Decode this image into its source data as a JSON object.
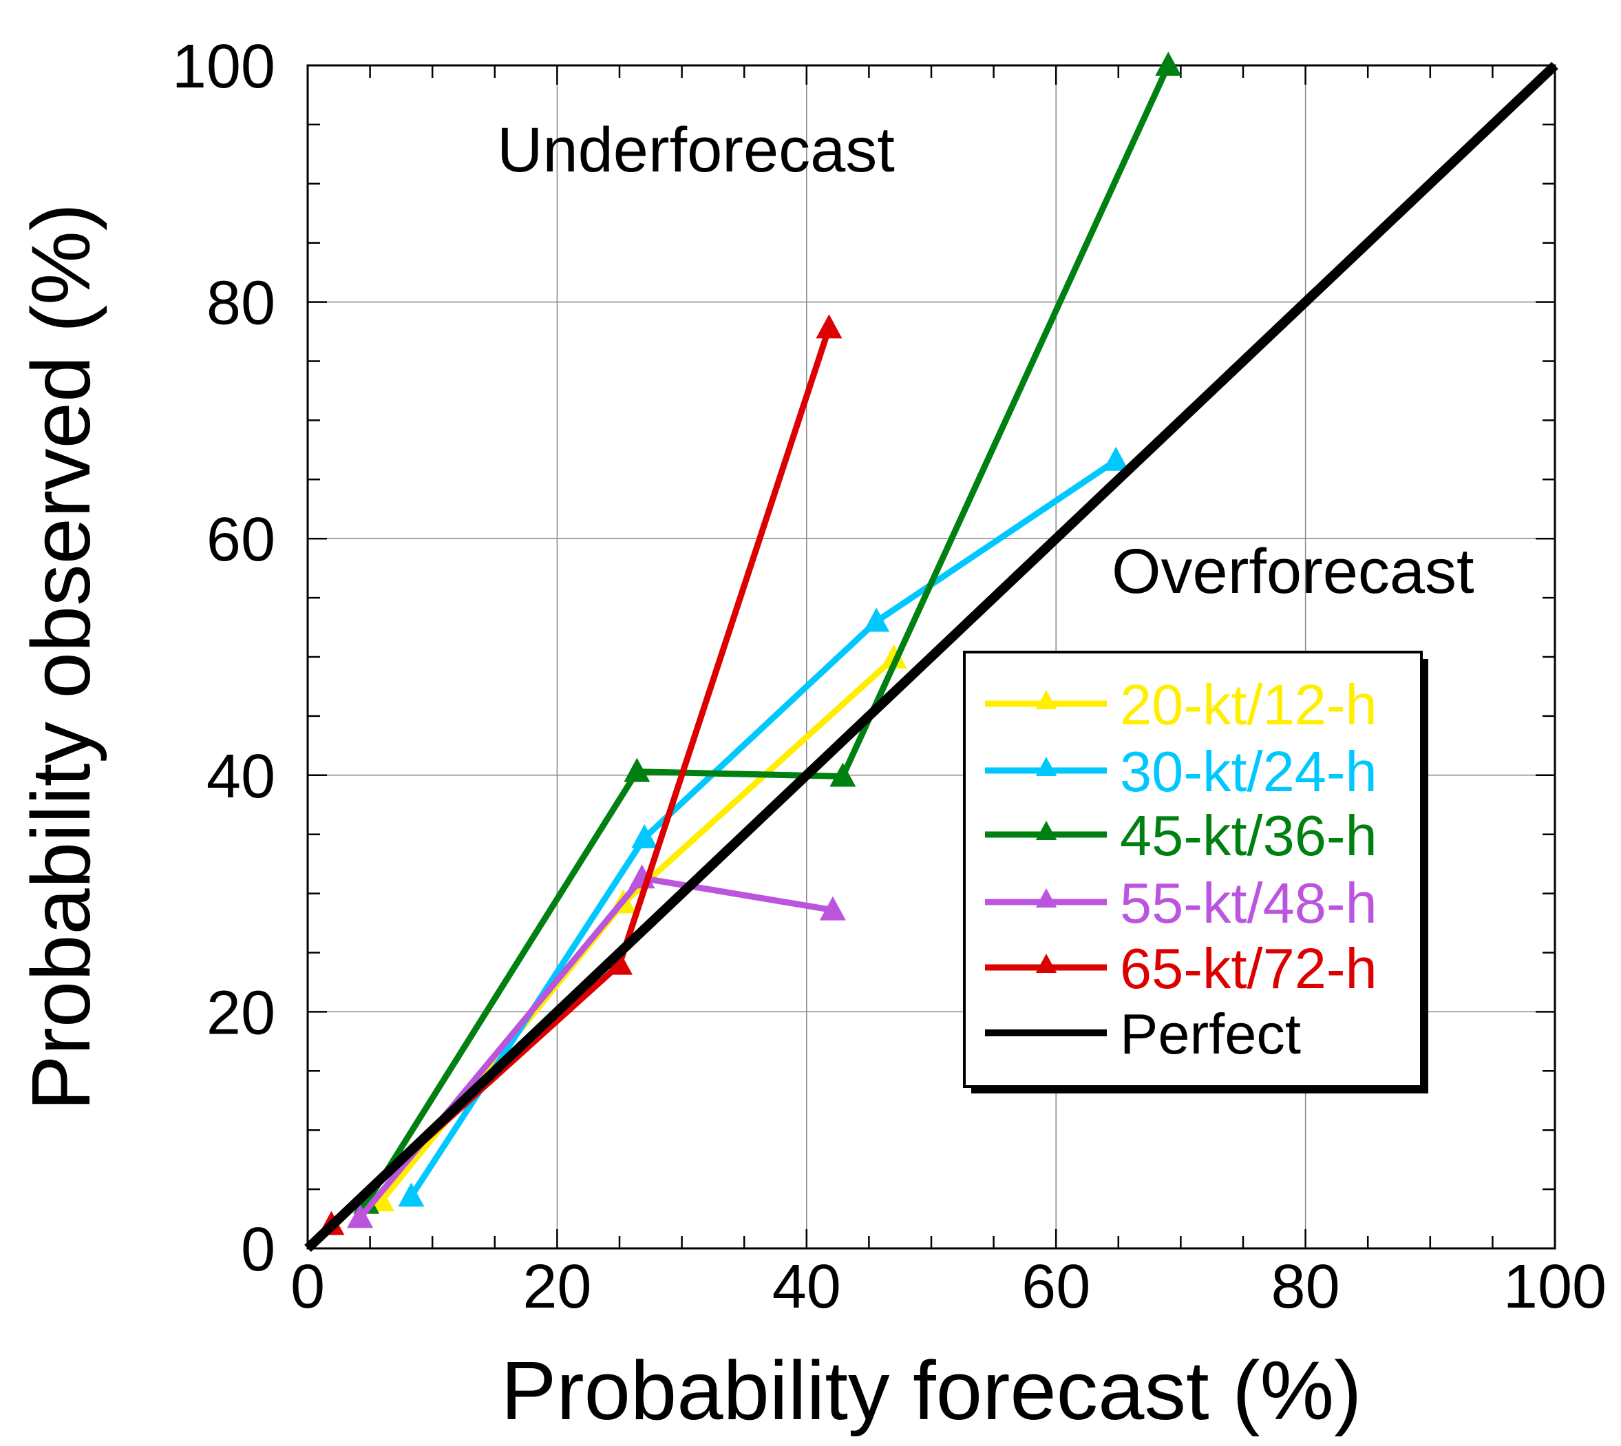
{
  "chart_data": {
    "type": "line",
    "title": "",
    "xlabel": "Probability forecast (%)",
    "ylabel": "Probability observed (%)",
    "xlim": [
      0,
      100
    ],
    "ylim": [
      0,
      100
    ],
    "xticks": [
      0,
      20,
      40,
      60,
      80,
      100
    ],
    "yticks": [
      0,
      20,
      40,
      60,
      80,
      100
    ],
    "minor_tick_step": 5,
    "grid": true,
    "legend_placement": "center-right",
    "annotations": [
      {
        "text": "Underforecast",
        "x": 15,
        "y": 93
      },
      {
        "text": "Overforecast",
        "x": 64.5,
        "y": 57
      }
    ],
    "series": [
      {
        "name": "20-kt/12-h",
        "color": "#ffee00",
        "marker": "triangle",
        "x": [
          5.9,
          25.3,
          47.0
        ],
        "y": [
          4.0,
          29.2,
          49.9
        ]
      },
      {
        "name": "30-kt/24-h",
        "color": "#00c8ff",
        "marker": "triangle",
        "x": [
          8.3,
          27.0,
          45.6,
          64.8
        ],
        "y": [
          4.4,
          34.7,
          53.0,
          66.6
        ]
      },
      {
        "name": "45-kt/36-h",
        "color": "#008010",
        "marker": "triangle",
        "x": [
          4.7,
          26.4,
          42.9,
          69.0
        ],
        "y": [
          3.8,
          40.3,
          39.9,
          100.0
        ]
      },
      {
        "name": "55-kt/48-h",
        "color": "#bb55dd",
        "marker": "triangle",
        "x": [
          4.2,
          26.8,
          42.1
        ],
        "y": [
          2.6,
          31.3,
          28.6
        ]
      },
      {
        "name": "65-kt/72-h",
        "color": "#dd0000",
        "marker": "triangle",
        "x": [
          1.9,
          25.0,
          41.8
        ],
        "y": [
          2.0,
          24.0,
          77.8
        ]
      },
      {
        "name": "Perfect",
        "color": "#000000",
        "marker": "none",
        "x": [
          0,
          100
        ],
        "y": [
          0,
          100
        ]
      }
    ]
  }
}
